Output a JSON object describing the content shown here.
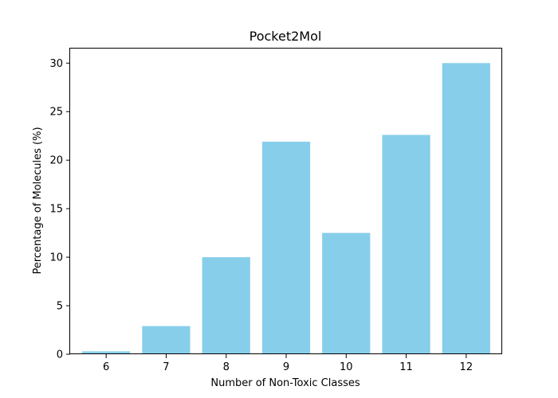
{
  "chart_data": {
    "type": "bar",
    "title": "Pocket2Mol",
    "xlabel": "Number of Non-Toxic Classes",
    "ylabel": "Percentage of Molecules (%)",
    "categories": [
      "6",
      "7",
      "8",
      "9",
      "10",
      "11",
      "12"
    ],
    "values": [
      0.3,
      2.9,
      10.0,
      21.9,
      12.5,
      22.6,
      30.0
    ],
    "ylim": [
      0,
      31.5
    ],
    "yticks": [
      0,
      5,
      10,
      15,
      20,
      25,
      30
    ],
    "bar_color": "#87ceeb",
    "grid": false
  }
}
